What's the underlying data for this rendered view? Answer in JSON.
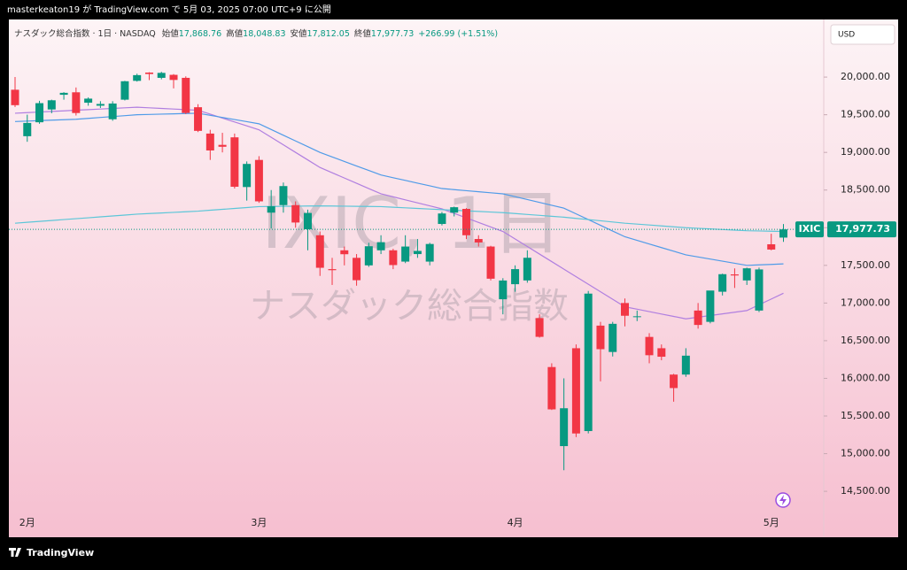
{
  "publish_note": "masterkeaton19 が TradingView.com で 5月 03, 2025 07:00 UTC+9 に公開",
  "brand": "TradingView",
  "chart_data": {
    "type": "candlestick",
    "title": "ナスダック総合指数 · 1日 · NASDAQ",
    "header_labels": [
      "始値",
      "高値",
      "安値",
      "終値"
    ],
    "header_value_labels": [
      "17,868.76",
      "18,048.83",
      "17,812.05",
      "17,977.73"
    ],
    "change_label": "+266.99 (+1.51%)",
    "currency": "USD",
    "symbol": "IXIC",
    "last_price_label": "17,977.73",
    "watermark": [
      "IXIC, 1日",
      "ナスダック総合指数"
    ],
    "up_color": "#089981",
    "down_color": "#f23645",
    "categories": [
      null,
      "2月",
      null,
      null,
      null,
      null,
      null,
      null,
      null,
      null,
      null,
      null,
      null,
      null,
      null,
      null,
      null,
      null,
      null,
      null,
      "3月",
      null,
      null,
      null,
      null,
      null,
      null,
      null,
      null,
      null,
      null,
      null,
      null,
      null,
      null,
      null,
      null,
      null,
      null,
      null,
      null,
      "4月",
      null,
      null,
      null,
      null,
      null,
      null,
      null,
      null,
      null,
      null,
      null,
      null,
      null,
      null,
      null,
      null,
      null,
      null,
      null,
      null,
      "5月",
      null
    ],
    "candles": [
      [
        19832,
        20001,
        19603,
        19627
      ],
      [
        19215,
        19501,
        19141,
        19391
      ],
      [
        19400,
        19685,
        19380,
        19654
      ],
      [
        19570,
        19700,
        19520,
        19692
      ],
      [
        19765,
        19800,
        19700,
        19791
      ],
      [
        19798,
        19862,
        19490,
        19523
      ],
      [
        19660,
        19730,
        19620,
        19714
      ],
      [
        19620,
        19680,
        19590,
        19643
      ],
      [
        19440,
        19680,
        19420,
        19649
      ],
      [
        19700,
        19950,
        19690,
        19945
      ],
      [
        19950,
        20045,
        19940,
        20026
      ],
      [
        20060,
        20065,
        19960,
        20041
      ],
      [
        19990,
        20070,
        19970,
        20056
      ],
      [
        20030,
        20040,
        19850,
        19962
      ],
      [
        19990,
        20010,
        19510,
        19524
      ],
      [
        19600,
        19640,
        19270,
        19286
      ],
      [
        19250,
        19300,
        18900,
        19026
      ],
      [
        19100,
        19260,
        19000,
        19075
      ],
      [
        19200,
        19250,
        18520,
        18544
      ],
      [
        18540,
        18880,
        18360,
        18847
      ],
      [
        18900,
        18950,
        18330,
        18350
      ],
      [
        18200,
        18500,
        17990,
        18285
      ],
      [
        18300,
        18600,
        18200,
        18553
      ],
      [
        18300,
        18350,
        18000,
        18069
      ],
      [
        17980,
        18240,
        17700,
        18196
      ],
      [
        17900,
        17950,
        17360,
        17468
      ],
      [
        17450,
        17600,
        17240,
        17436
      ],
      [
        17700,
        17750,
        17500,
        17648
      ],
      [
        17600,
        17650,
        17230,
        17303
      ],
      [
        17500,
        17800,
        17480,
        17754
      ],
      [
        17700,
        17900,
        17650,
        17808
      ],
      [
        17700,
        17720,
        17450,
        17504
      ],
      [
        17550,
        17900,
        17530,
        17750
      ],
      [
        17650,
        17850,
        17600,
        17692
      ],
      [
        17550,
        17800,
        17500,
        17784
      ],
      [
        18050,
        18210,
        18030,
        18189
      ],
      [
        18200,
        18280,
        18150,
        18272
      ],
      [
        18250,
        18260,
        17850,
        17900
      ],
      [
        17850,
        17900,
        17750,
        17804
      ],
      [
        17750,
        17760,
        17300,
        17323
      ],
      [
        17050,
        17330,
        16850,
        17299
      ],
      [
        17250,
        17500,
        17150,
        17450
      ],
      [
        17300,
        17700,
        17270,
        17601
      ],
      [
        16800,
        16850,
        16540,
        16551
      ],
      [
        16150,
        16200,
        15580,
        15588
      ],
      [
        15100,
        16000,
        14780,
        15603
      ],
      [
        16400,
        16450,
        15220,
        15268
      ],
      [
        15300,
        17160,
        15270,
        17125
      ],
      [
        16700,
        16750,
        15960,
        16387
      ],
      [
        16350,
        16750,
        16290,
        16724
      ],
      [
        17000,
        17060,
        16690,
        16831
      ],
      [
        16820,
        16900,
        16760,
        16824
      ],
      [
        16550,
        16600,
        16200,
        16307
      ],
      [
        16400,
        16450,
        16240,
        16287
      ],
      [
        16050,
        16060,
        15690,
        15871
      ],
      [
        16050,
        16400,
        16020,
        16301
      ],
      [
        16900,
        17000,
        16660,
        16709
      ],
      [
        16750,
        17160,
        16730,
        17166
      ],
      [
        17150,
        17390,
        17100,
        17383
      ],
      [
        17380,
        17460,
        17200,
        17366
      ],
      [
        17300,
        17470,
        17240,
        17461
      ],
      [
        16900,
        17470,
        16880,
        17446
      ],
      [
        17780,
        17920,
        17700,
        17710
      ],
      [
        17868.76,
        18048.83,
        17812.05,
        17977.73
      ]
    ],
    "moving_averages": [
      {
        "color": "#b07fe0",
        "values": [
          19520,
          19528,
          19536,
          19544,
          19552,
          19560,
          19568,
          19576,
          19584,
          19592,
          19600,
          19592,
          19584,
          19576,
          19568,
          19560,
          19508,
          19456,
          19404,
          19352,
          19300,
          19200,
          19100,
          19000,
          18900,
          18800,
          18730,
          18660,
          18590,
          18520,
          18450,
          18410,
          18370,
          18330,
          18290,
          18250,
          18190,
          18130,
          18070,
          18010,
          17950,
          17850,
          17750,
          17650,
          17550,
          17450,
          17350,
          17250,
          17150,
          17050,
          16950,
          16918,
          16886,
          16854,
          16822,
          16790,
          16812,
          16834,
          16856,
          16878,
          16900,
          16977,
          17053,
          17130
        ]
      },
      {
        "color": "#4f9be8",
        "values": [
          19410,
          19416,
          19422,
          19428,
          19434,
          19440,
          19452,
          19464,
          19476,
          19488,
          19500,
          19504,
          19508,
          19512,
          19516,
          19520,
          19492,
          19464,
          19436,
          19408,
          19380,
          19304,
          19228,
          19152,
          19076,
          19000,
          18940,
          18880,
          18820,
          18760,
          18700,
          18664,
          18628,
          18592,
          18556,
          18520,
          18506,
          18492,
          18478,
          18464,
          18450,
          18412,
          18374,
          18336,
          18298,
          18260,
          18184,
          18108,
          18032,
          17956,
          17880,
          17832,
          17784,
          17736,
          17688,
          17640,
          17612,
          17584,
          17556,
          17528,
          17500,
          17507,
          17513,
          17520
        ]
      },
      {
        "color": "#5cc6d8",
        "values": [
          18060,
          18072,
          18084,
          18096,
          18108,
          18120,
          18132,
          18144,
          18156,
          18168,
          18180,
          18188,
          18196,
          18204,
          18212,
          18220,
          18232,
          18244,
          18256,
          18268,
          18280,
          18282,
          18284,
          18286,
          18288,
          18290,
          18288,
          18286,
          18284,
          18282,
          18280,
          18272,
          18264,
          18256,
          18248,
          18240,
          18232,
          18224,
          18216,
          18208,
          18200,
          18188,
          18176,
          18164,
          18152,
          18140,
          18124,
          18108,
          18092,
          18076,
          18060,
          18048,
          18036,
          18024,
          18012,
          18000,
          17992,
          17984,
          17976,
          17968,
          17960,
          17957,
          17953,
          17950
        ]
      }
    ],
    "ylim": [
      13890,
      20765
    ],
    "yticks": [
      {
        "value": 14500,
        "label": "14,500.00"
      },
      {
        "value": 15000,
        "label": "15,000.00"
      },
      {
        "value": 15500,
        "label": "15,500.00"
      },
      {
        "value": 16000,
        "label": "16,000.00"
      },
      {
        "value": 16500,
        "label": "16,500.00"
      },
      {
        "value": 17000,
        "label": "17,000.00"
      },
      {
        "value": 17500,
        "label": "17,500.00"
      },
      {
        "value": 18000,
        "label": "18,000.00"
      },
      {
        "value": 18500,
        "label": "18,500.00"
      },
      {
        "value": 19000,
        "label": "19,000.00"
      },
      {
        "value": 19500,
        "label": "19,500.00"
      },
      {
        "value": 20000,
        "label": "20,000.00"
      }
    ]
  }
}
